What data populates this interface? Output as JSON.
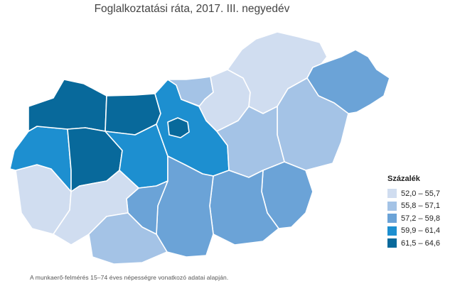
{
  "title": "Foglalkoztatási ráta, 2017. III. negyedév",
  "legend": {
    "title": "Százalék",
    "classes": [
      {
        "label": "52,0 – 55,7",
        "color": "#d0ddf0"
      },
      {
        "label": "55,8 – 57,1",
        "color": "#a4c3e6"
      },
      {
        "label": "57,2 – 59,8",
        "color": "#6ba3d7"
      },
      {
        "label": "59,9 – 61,4",
        "color": "#1d8fd0"
      },
      {
        "label": "61,5 – 64,6",
        "color": "#08699b"
      }
    ]
  },
  "regions": [
    {
      "id": "gyor-moson-sopron",
      "class": 4
    },
    {
      "id": "komarom-esztergom",
      "class": 4
    },
    {
      "id": "vas",
      "class": 3
    },
    {
      "id": "veszprem",
      "class": 4
    },
    {
      "id": "fejer",
      "class": 3
    },
    {
      "id": "pest",
      "class": 3
    },
    {
      "id": "budapest",
      "class": 4
    },
    {
      "id": "nograd",
      "class": 1
    },
    {
      "id": "heves",
      "class": 0
    },
    {
      "id": "borsod-abauj-zemplen",
      "class": 0
    },
    {
      "id": "szabolcs-szatmar-bereg",
      "class": 2
    },
    {
      "id": "hajdu-bihar",
      "class": 1
    },
    {
      "id": "jasz-nagykun-szolnok",
      "class": 1
    },
    {
      "id": "bekes",
      "class": 2
    },
    {
      "id": "csongrad",
      "class": 2
    },
    {
      "id": "bacs-kiskun",
      "class": 2
    },
    {
      "id": "tolna",
      "class": 2
    },
    {
      "id": "somogy",
      "class": 0
    },
    {
      "id": "baranya",
      "class": 1
    },
    {
      "id": "zala",
      "class": 0
    }
  ],
  "note": "A munkaerő-felmérés 15–74 éves népességre vonatkozó adatai alapján."
}
